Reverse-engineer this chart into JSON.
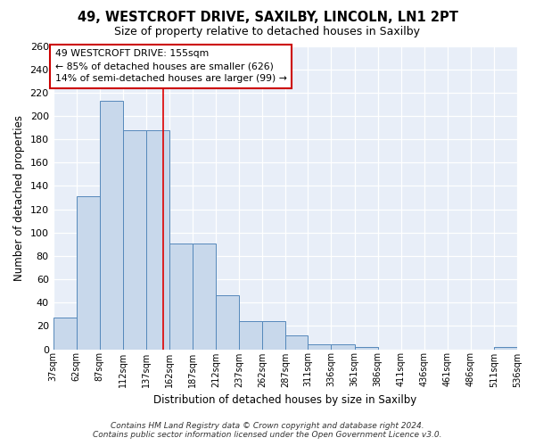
{
  "title": "49, WESTCROFT DRIVE, SAXILBY, LINCOLN, LN1 2PT",
  "subtitle": "Size of property relative to detached houses in Saxilby",
  "xlabel": "Distribution of detached houses by size in Saxilby",
  "ylabel": "Number of detached properties",
  "bar_color": "#c8d8eb",
  "bar_edge_color": "#5588bb",
  "bg_color": "#e8eef8",
  "grid_color": "#ffffff",
  "bin_edges": [
    37,
    62,
    87,
    112,
    137,
    162,
    187,
    212,
    237,
    262,
    287,
    311,
    336,
    361,
    386,
    411,
    436,
    461,
    486,
    511,
    536
  ],
  "counts": [
    27,
    131,
    213,
    188,
    188,
    91,
    91,
    46,
    24,
    24,
    12,
    4,
    4,
    2,
    0,
    0,
    0,
    0,
    0,
    2
  ],
  "tick_labels": [
    "37sqm",
    "62sqm",
    "87sqm",
    "112sqm",
    "137sqm",
    "162sqm",
    "187sqm",
    "212sqm",
    "237sqm",
    "262sqm",
    "287sqm",
    "311sqm",
    "336sqm",
    "361sqm",
    "386sqm",
    "411sqm",
    "436sqm",
    "461sqm",
    "486sqm",
    "511sqm",
    "536sqm"
  ],
  "property_size": 155,
  "red_line_color": "#dd0000",
  "annotation_text": "49 WESTCROFT DRIVE: 155sqm\n← 85% of detached houses are smaller (626)\n14% of semi-detached houses are larger (99) →",
  "annotation_box_color": "#ffffff",
  "annotation_box_edge": "#cc0000",
  "footer_text": "Contains HM Land Registry data © Crown copyright and database right 2024.\nContains public sector information licensed under the Open Government Licence v3.0.",
  "fig_facecolor": "#ffffff",
  "ylim": [
    0,
    260
  ],
  "yticks": [
    0,
    20,
    40,
    60,
    80,
    100,
    120,
    140,
    160,
    180,
    200,
    220,
    240,
    260
  ]
}
